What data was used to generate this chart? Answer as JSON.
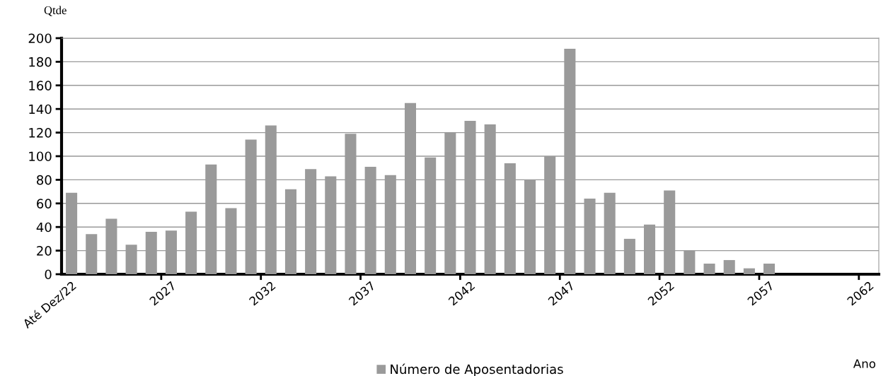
{
  "chart_data": {
    "type": "bar",
    "categories": [
      "Até Dez/22",
      null,
      null,
      null,
      null,
      "2027",
      null,
      null,
      null,
      null,
      "2032",
      null,
      null,
      null,
      null,
      "2037",
      null,
      null,
      null,
      null,
      "2042",
      null,
      null,
      null,
      null,
      "2047",
      null,
      null,
      null,
      null,
      "2052",
      null,
      null,
      null,
      null,
      "2057",
      null,
      null,
      null,
      null,
      "2062"
    ],
    "series": [
      {
        "name": "Número de Aposentadorias",
        "color": "#9a9a9a",
        "values": [
          69,
          34,
          47,
          25,
          36,
          37,
          53,
          93,
          56,
          114,
          126,
          72,
          89,
          83,
          119,
          91,
          84,
          145,
          99,
          120,
          130,
          127,
          94,
          80,
          100,
          191,
          64,
          69,
          30,
          42,
          71,
          20,
          9,
          12,
          5,
          9,
          0,
          0,
          0,
          0,
          0
        ]
      }
    ],
    "ylabel": "Qtde",
    "xlabel": "Ano",
    "ylim": [
      0,
      200
    ],
    "yticks": [
      0,
      20,
      40,
      60,
      80,
      100,
      120,
      140,
      160,
      180,
      200
    ],
    "grid": "y",
    "legend": "bottom"
  }
}
